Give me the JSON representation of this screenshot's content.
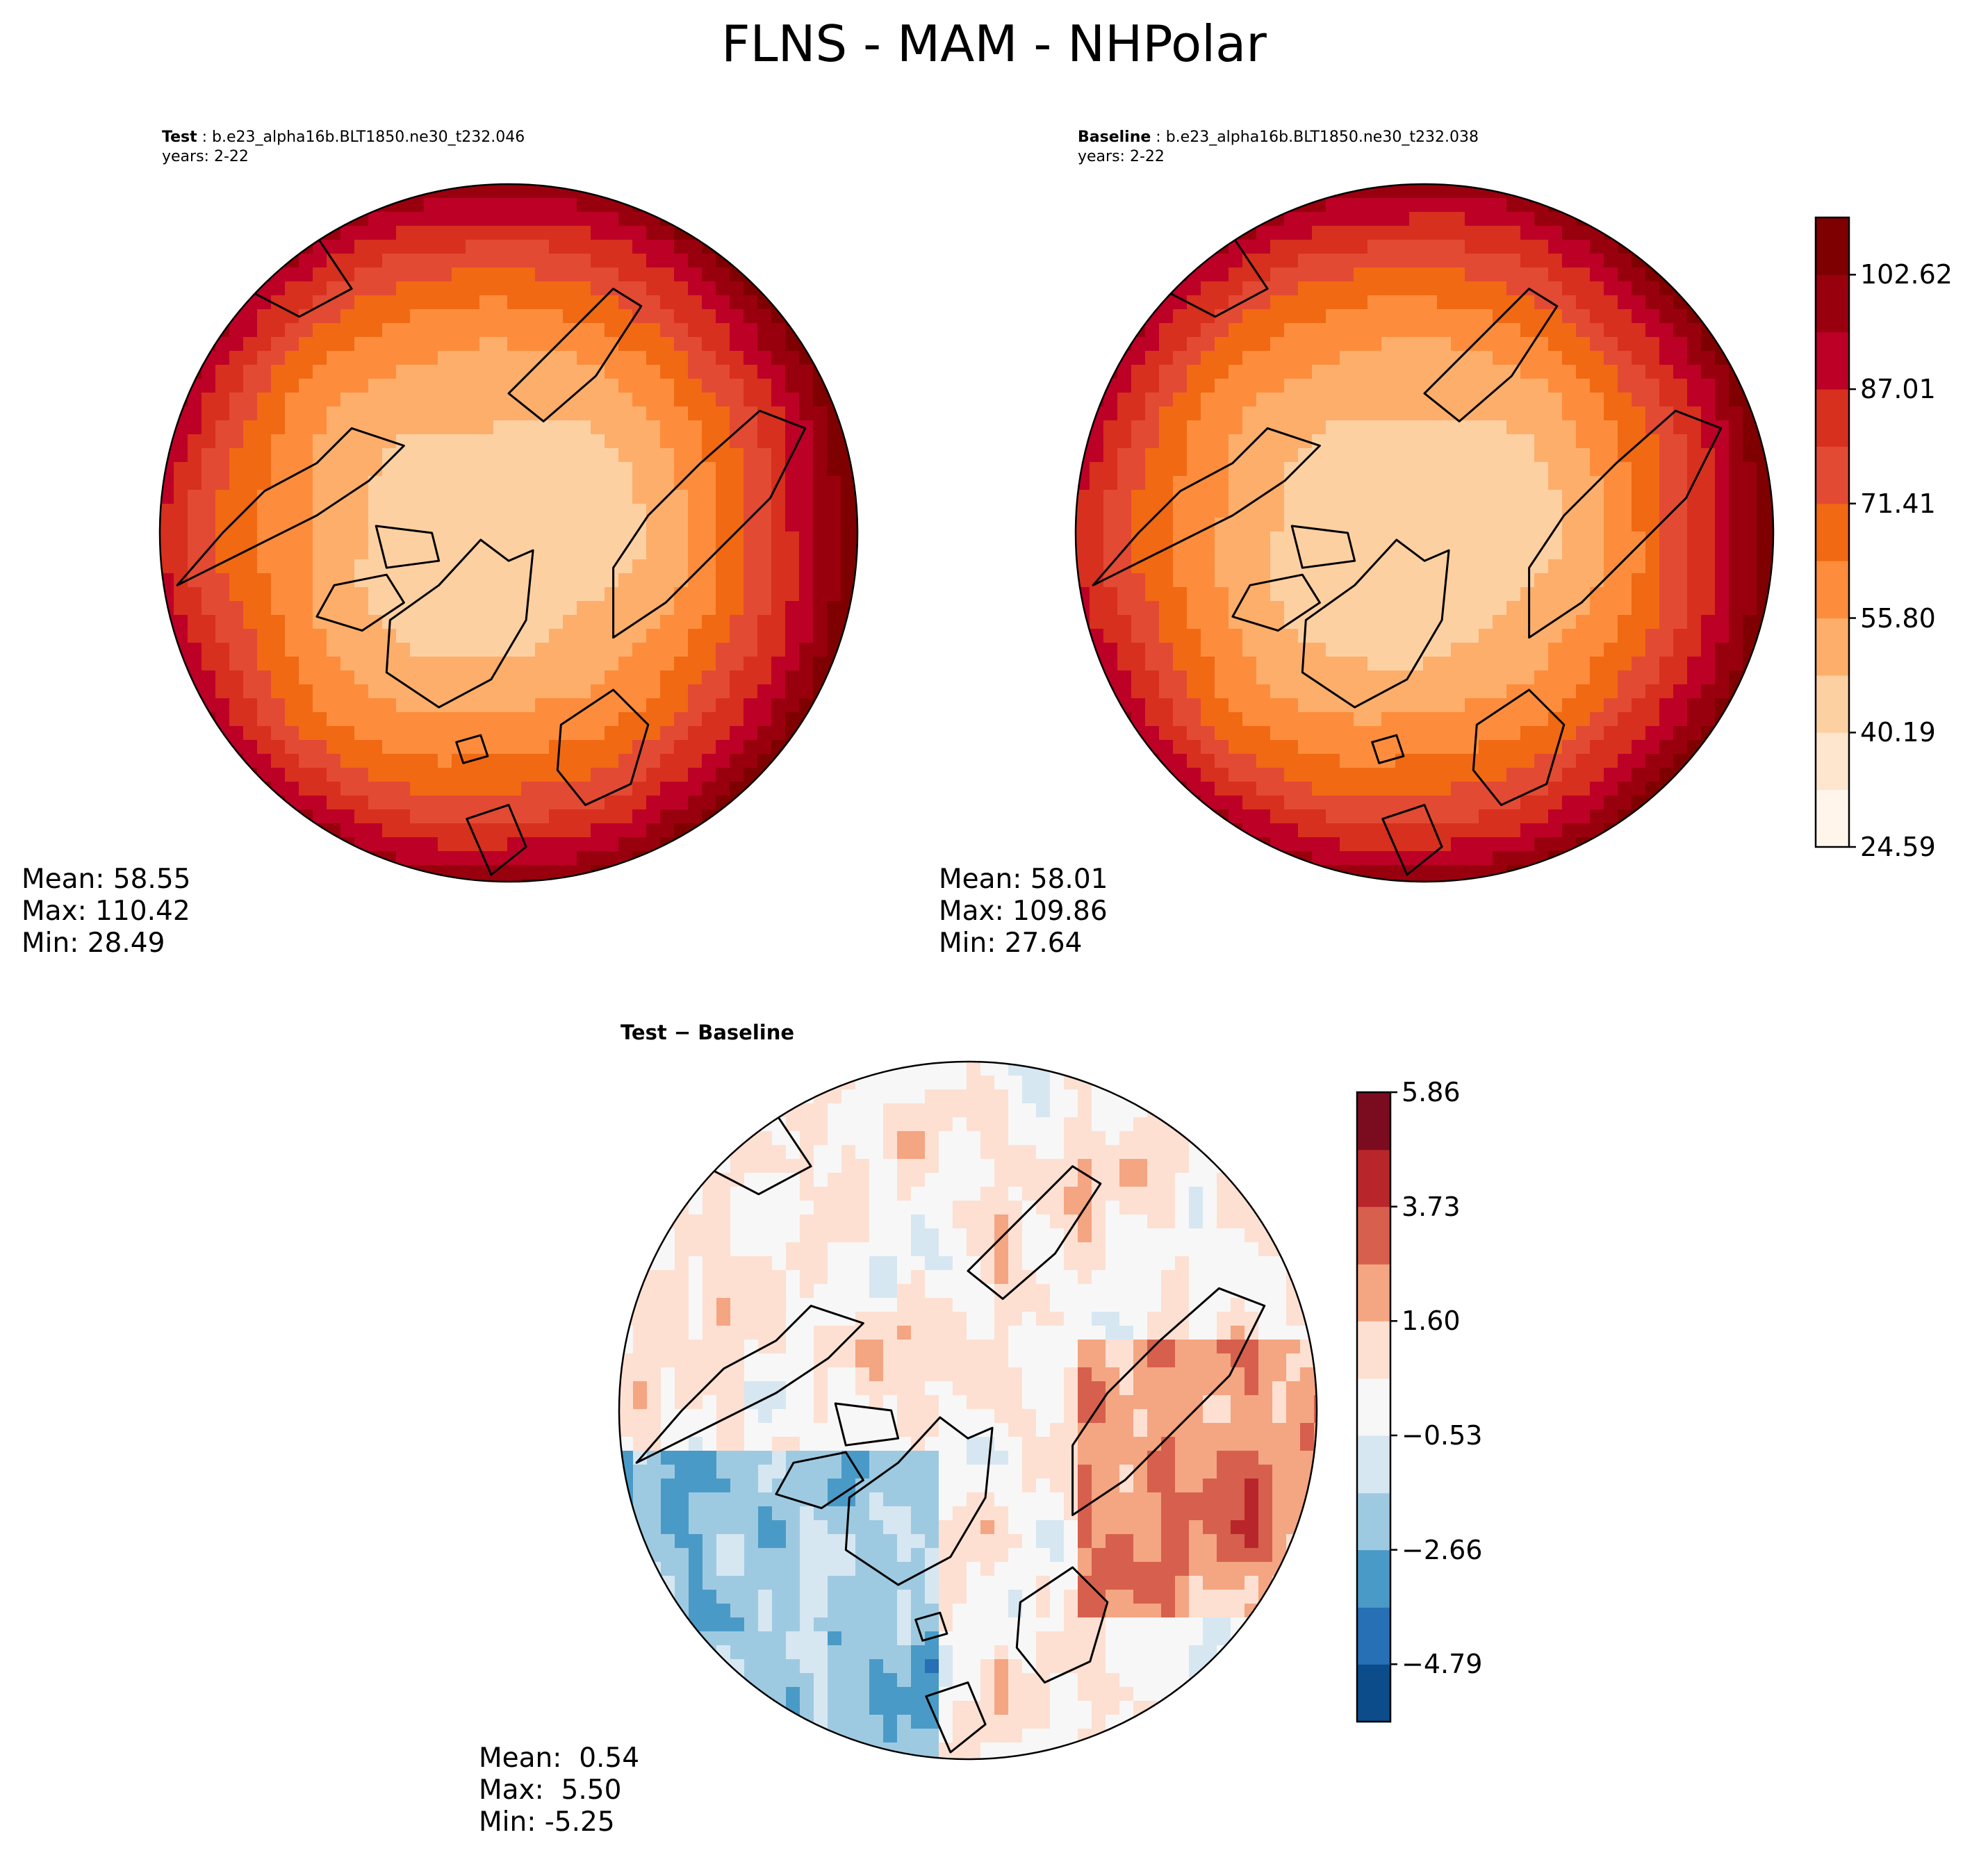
{
  "figure_title": "FLNS - MAM - NHPolar",
  "colors": {
    "land_outline": "#000000",
    "map_border": "#000000",
    "abs_colormap": [
      "#fff5eb",
      "#fee6ce",
      "#fdd0a2",
      "#fdae6b",
      "#fd8d3c",
      "#f16913",
      "#e34a33",
      "#d7301f",
      "#bd0026",
      "#99000d",
      "#7f0000"
    ],
    "diff_colormap": [
      "#0c4c8a",
      "#2770b5",
      "#4a9ac7",
      "#9ecae1",
      "#d6e7f2",
      "#f7f7f7",
      "#fde0d2",
      "#f4a582",
      "#d6604d",
      "#b8262b",
      "#7b0c20"
    ]
  },
  "chart_data": [
    {
      "type": "heatmap",
      "projection": "north-polar-stereographic",
      "panel": "test",
      "label": "Test",
      "case": "b.e23_alpha16b.BLT1850.ne30_t232.046",
      "years": "years: 2-22",
      "stats": {
        "mean": "Mean: 58.55",
        "max": "Max: 110.42",
        "min": "Min: 28.49"
      },
      "field_range": [
        28.49,
        110.42
      ]
    },
    {
      "type": "heatmap",
      "projection": "north-polar-stereographic",
      "panel": "baseline",
      "label": "Baseline",
      "case": "b.e23_alpha16b.BLT1850.ne30_t232.038",
      "years": "years: 2-22",
      "stats": {
        "mean": "Mean: 58.01",
        "max": "Max: 109.86",
        "min": "Min: 27.64"
      },
      "field_range": [
        27.64,
        109.86
      ],
      "colorbar": {
        "min": 24.59,
        "max": 110.42,
        "levels": [
          24.59,
          32.39,
          40.19,
          48.0,
          55.8,
          63.61,
          71.41,
          79.21,
          87.01,
          94.82,
          102.62,
          110.42
        ],
        "ticks": [
          24.59,
          40.19,
          55.8,
          71.41,
          87.01,
          102.62
        ],
        "tick_labels": [
          "24.59",
          "40.19",
          "55.80",
          "71.41",
          "87.01",
          "102.62"
        ]
      }
    },
    {
      "type": "heatmap",
      "projection": "north-polar-stereographic",
      "panel": "difference",
      "label": "Test − Baseline",
      "stats": {
        "mean": "Mean:  0.54",
        "max": "Max:  5.50",
        "min": "Min: -5.25"
      },
      "field_range": [
        -5.25,
        5.5
      ],
      "colorbar": {
        "min": -5.86,
        "max": 5.86,
        "levels": [
          -5.86,
          -4.79,
          -3.73,
          -2.66,
          -1.6,
          -0.53,
          0.53,
          1.6,
          2.66,
          3.73,
          4.79,
          5.86
        ],
        "ticks": [
          -4.79,
          -2.66,
          -0.53,
          1.6,
          3.73,
          5.86
        ],
        "tick_labels": [
          "−4.79",
          "−2.66",
          "−0.53",
          "1.60",
          "3.73",
          "5.86"
        ]
      }
    }
  ]
}
